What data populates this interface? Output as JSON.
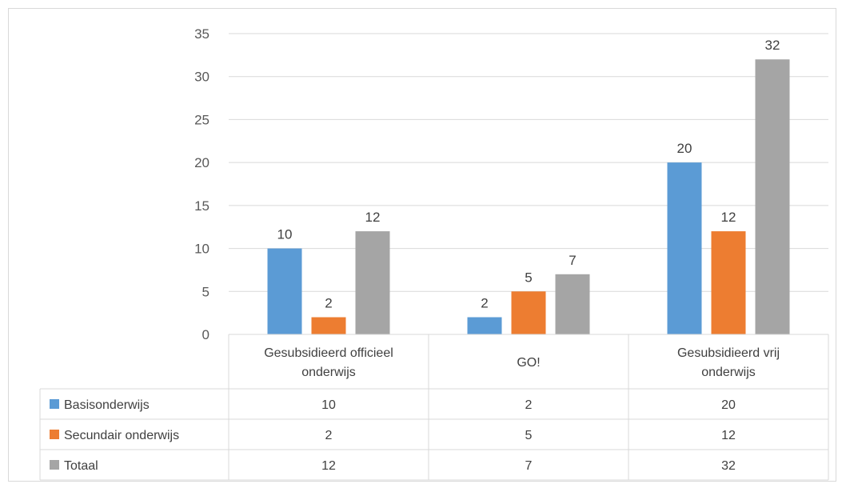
{
  "chart_data": {
    "type": "bar",
    "title": "",
    "xlabel": "",
    "ylabel": "",
    "ylim": [
      0,
      35
    ],
    "yticks": [
      0,
      5,
      10,
      15,
      20,
      25,
      30,
      35
    ],
    "grid": true,
    "legend_placement": "data table",
    "categories": [
      [
        "Gesubsidieerd officieel",
        "onderwijs"
      ],
      [
        "GO!"
      ],
      [
        "Gesubsidieerd vrij",
        "onderwijs"
      ]
    ],
    "series": [
      {
        "name": "Basisonderwijs",
        "color": "#5b9bd5",
        "values": [
          10,
          2,
          20
        ]
      },
      {
        "name": "Secundair onderwijs",
        "color": "#ed7d31",
        "values": [
          2,
          5,
          12
        ]
      },
      {
        "name": "Totaal",
        "color": "#a5a5a5",
        "values": [
          12,
          7,
          32
        ]
      }
    ]
  }
}
